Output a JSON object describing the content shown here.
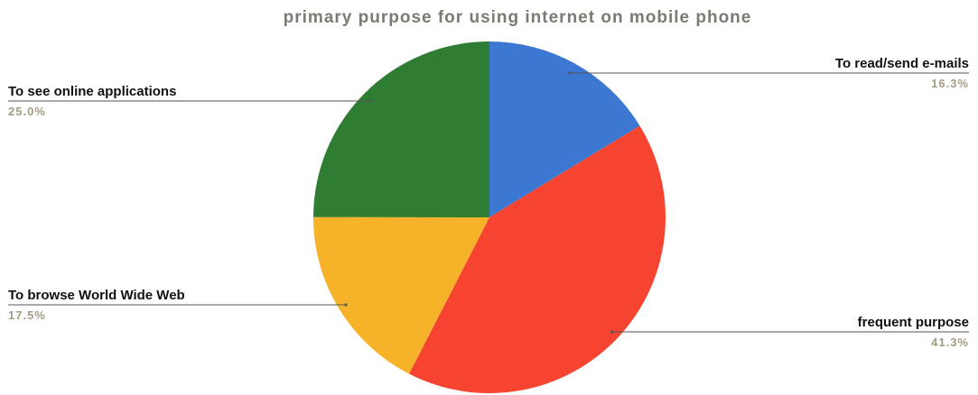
{
  "chart_data": {
    "type": "pie",
    "title": "primary purpose for using internet on mobile phone",
    "start_angle_deg": 0,
    "direction": "clockwise",
    "labels": [
      "To read/send e-mails",
      "frequent purpose",
      "To browse World Wide Web",
      "To see online applications"
    ],
    "values": [
      16.3,
      41.3,
      17.5,
      25.0
    ],
    "value_labels": [
      "16.3%",
      "41.3%",
      "17.5%",
      "25.0%"
    ],
    "colors": [
      "#3c78d1",
      "#f64430",
      "#f6b32a",
      "#2f7d32"
    ],
    "legend": "none"
  }
}
